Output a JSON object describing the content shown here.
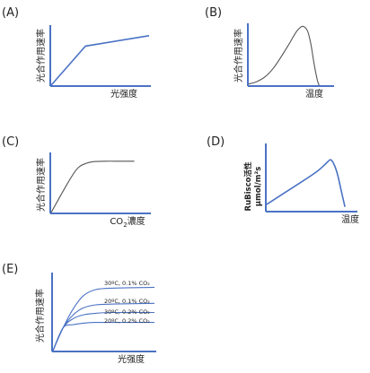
{
  "chart_data": [
    {
      "panel": "(A)",
      "type": "line",
      "ylabel": "光合作用速率",
      "xlabel": "光强度",
      "series": [
        {
          "x": [
            0,
            0.35,
            1.0
          ],
          "y": [
            0,
            0.67,
            0.85
          ]
        }
      ]
    },
    {
      "panel": "(B)",
      "type": "line",
      "ylabel": "光合作用速率",
      "xlabel": "温度",
      "series": [
        {
          "x": [
            0,
            0.1,
            0.2,
            0.3,
            0.4,
            0.5,
            0.55,
            0.6,
            0.66,
            0.72,
            0.76,
            0.8,
            0.84,
            0.86
          ],
          "y": [
            0.02,
            0.06,
            0.14,
            0.28,
            0.48,
            0.7,
            0.82,
            0.92,
            0.98,
            0.9,
            0.68,
            0.35,
            0.08,
            0.0
          ]
        }
      ]
    },
    {
      "panel": "(C)",
      "type": "line",
      "ylabel": "光合作用速率",
      "xlabel": "CO2濃度",
      "xlabel_parts": {
        "prefix": "CO",
        "subscript": "2",
        "suffix": "濃度"
      },
      "series": [
        {
          "x": [
            0,
            0.15,
            0.25,
            0.3,
            0.35,
            0.42,
            0.55,
            0.7,
            0.85
          ],
          "y": [
            0,
            0.45,
            0.72,
            0.8,
            0.84,
            0.87,
            0.88,
            0.88,
            0.88
          ]
        }
      ]
    },
    {
      "panel": "(D)",
      "type": "line",
      "ylabel": [
        "RuBisco活性",
        "µmol/m²s"
      ],
      "xlabel": "温度",
      "series": [
        {
          "x": [
            0,
            0.2,
            0.4,
            0.55,
            0.62,
            0.68,
            0.72,
            0.76,
            0.8,
            0.84,
            0.88
          ],
          "y": [
            0.1,
            0.28,
            0.46,
            0.6,
            0.68,
            0.76,
            0.8,
            0.72,
            0.55,
            0.3,
            0.06
          ]
        }
      ]
    },
    {
      "panel": "(E)",
      "type": "line",
      "ylabel": "光合作用速率",
      "xlabel": "光强度",
      "series": [
        {
          "name": "30ºC, 0.1% CO₂",
          "x": [
            0,
            0.1,
            0.2,
            0.3,
            0.42,
            0.6,
            1.0
          ],
          "y": [
            0,
            0.3,
            0.55,
            0.72,
            0.8,
            0.82,
            0.83
          ]
        },
        {
          "name": "20ºC, 0.1% CO₂",
          "x": [
            0,
            0.1,
            0.2,
            0.3,
            0.42,
            0.6,
            1.0
          ],
          "y": [
            0,
            0.3,
            0.47,
            0.56,
            0.6,
            0.61,
            0.62
          ]
        },
        {
          "name": "30ºC, 0.2% CO₂",
          "x": [
            0,
            0.1,
            0.2,
            0.3,
            0.42,
            0.6,
            1.0
          ],
          "y": [
            0,
            0.3,
            0.42,
            0.47,
            0.49,
            0.5,
            0.5
          ]
        },
        {
          "name": "20ºC, 0.2% CO₂",
          "x": [
            0,
            0.1,
            0.2,
            0.3,
            0.42,
            0.6,
            1.0
          ],
          "y": [
            0,
            0.3,
            0.34,
            0.36,
            0.37,
            0.37,
            0.37
          ]
        }
      ]
    }
  ],
  "colors": {
    "axis": "#4a72c4",
    "curve_blue": "#4a72c4",
    "curve_dark": "#555555",
    "text": "#222222"
  }
}
